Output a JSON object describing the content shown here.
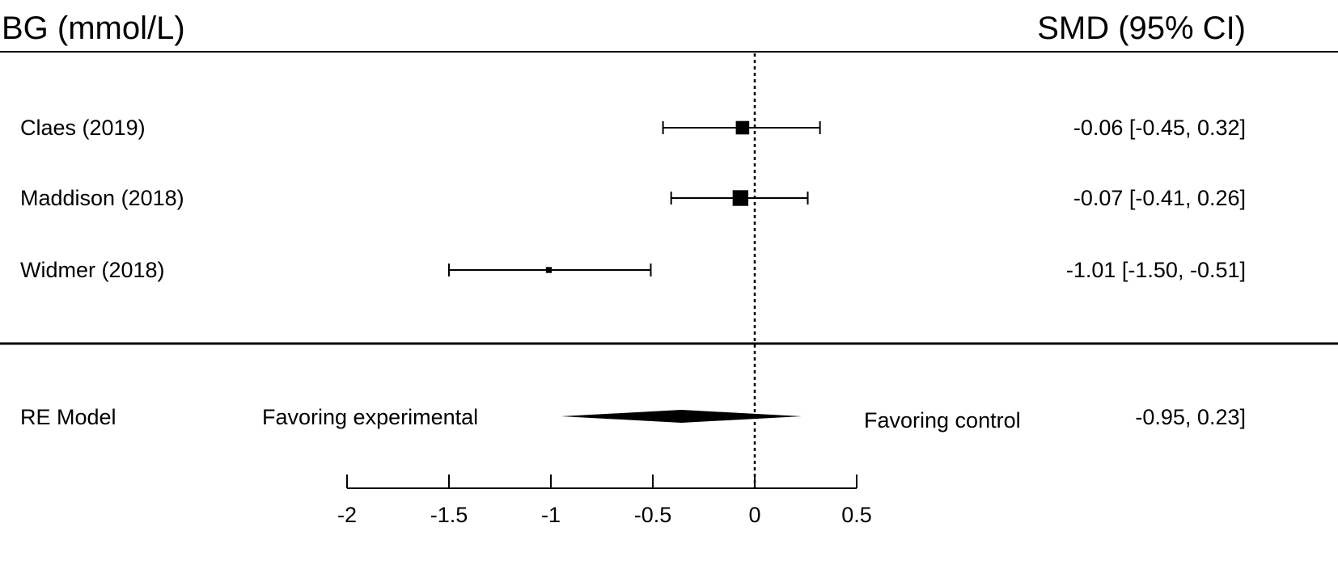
{
  "chart_data": {
    "type": "forest",
    "header_left": "BG (mmol/L)",
    "header_right": "SMD (95% CI)",
    "xlim": [
      -2,
      0.5
    ],
    "xticks": [
      -2,
      -1.5,
      -1,
      -0.5,
      0,
      0.5
    ],
    "xtick_labels": [
      "-2",
      "-1.5",
      "-1",
      "-0.5",
      "0",
      "0.5"
    ],
    "reference_line": 0,
    "studies": [
      {
        "label": "Claes  (2019)",
        "estimate": -0.06,
        "ci_low": -0.45,
        "ci_high": 0.32,
        "weight": 0.45,
        "ci_text": "-0.06 [-0.45,  0.32]"
      },
      {
        "label": "Maddison (2018)",
        "estimate": -0.07,
        "ci_low": -0.41,
        "ci_high": 0.26,
        "weight": 0.55,
        "ci_text": "-0.07 [-0.41,  0.26]"
      },
      {
        "label": "Widmer (2018)",
        "estimate": -1.01,
        "ci_low": -1.5,
        "ci_high": -0.51,
        "weight": 0.12,
        "ci_text": "-1.01 [-1.50, -0.51]"
      }
    ],
    "summary": {
      "label": "RE Model",
      "estimate": -0.36,
      "ci_low": -0.95,
      "ci_high": 0.23,
      "ci_text": "-0.95,  0.23]"
    },
    "favoring_left": "Favoring experimental",
    "favoring_right": "Favoring control"
  }
}
